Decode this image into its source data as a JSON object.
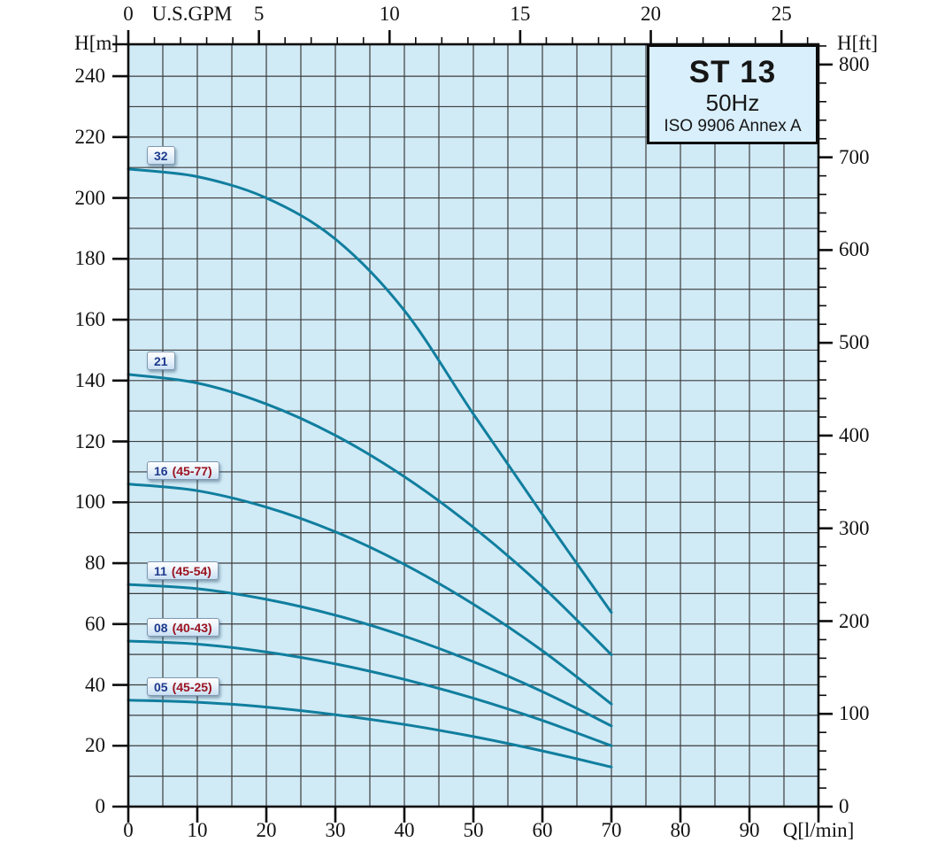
{
  "title_box": {
    "model": "ST 13",
    "frequency": "50Hz",
    "standard": "ISO 9906 Annex A"
  },
  "axes": {
    "left": {
      "label": "H[m]",
      "ticks": [
        0,
        20,
        40,
        60,
        80,
        100,
        120,
        140,
        160,
        180,
        200,
        220,
        240
      ],
      "range": [
        0,
        250.5
      ]
    },
    "right": {
      "label": "H[ft]",
      "ticks": [
        0,
        100,
        200,
        300,
        400,
        500,
        600,
        700,
        800
      ],
      "minor_step": 20,
      "range": [
        0,
        821.8
      ]
    },
    "bottom": {
      "label": "Q[l/min]",
      "ticks": [
        0,
        10,
        20,
        30,
        40,
        50,
        60,
        70,
        80,
        90
      ],
      "range": [
        0,
        100
      ]
    },
    "top": {
      "label": "U.S.GPM",
      "ticks": [
        0,
        5,
        10,
        15,
        20,
        25
      ],
      "minor_step": 1,
      "range": [
        0,
        26.42
      ]
    }
  },
  "chart_data": {
    "type": "line",
    "title": "ST 13 50Hz pump performance curves (ISO 9906 Annex A)",
    "xlabel": "Q[l/min]",
    "x2label": "U.S.GPM",
    "ylabel": "H[m]",
    "y2label": "H[ft]",
    "xlim": [
      0,
      100
    ],
    "ylim": [
      0,
      250.5
    ],
    "grid": {
      "x_step": 5,
      "y_step": 10,
      "on": true
    },
    "legend_position": "labels-on-curves",
    "series": [
      {
        "name": "32",
        "label_main": "32",
        "label_sub": "",
        "x": [
          0,
          10,
          20,
          30,
          40,
          50,
          60,
          70
        ],
        "values": [
          209.5,
          207.0,
          200.0,
          186.5,
          163.0,
          129.0,
          96.0,
          63.8
        ]
      },
      {
        "name": "21",
        "label_main": "21",
        "label_sub": "",
        "x": [
          0,
          10,
          20,
          30,
          40,
          50,
          60,
          70
        ],
        "values": [
          142.0,
          139.2,
          132.3,
          122.0,
          108.4,
          91.8,
          72.3,
          49.9
        ]
      },
      {
        "name": "16 (45-77)",
        "label_main": "16",
        "label_sub": "(45-77)",
        "x": [
          0,
          10,
          20,
          30,
          40,
          50,
          60,
          70
        ],
        "values": [
          106.0,
          103.8,
          98.4,
          90.3,
          79.6,
          66.5,
          51.2,
          33.7
        ]
      },
      {
        "name": "11 (45-54)",
        "label_main": "11",
        "label_sub": "(45-54)",
        "x": [
          0,
          10,
          20,
          30,
          40,
          50,
          60,
          70
        ],
        "values": [
          73.0,
          71.6,
          68.1,
          62.9,
          56.0,
          47.6,
          37.8,
          26.5
        ]
      },
      {
        "name": "08 (40-43)",
        "label_main": "08",
        "label_sub": "(40-43)",
        "x": [
          0,
          10,
          20,
          30,
          40,
          50,
          60,
          70
        ],
        "values": [
          54.4,
          53.4,
          50.8,
          46.9,
          41.8,
          35.6,
          28.3,
          20.0
        ]
      },
      {
        "name": "05 (45-25)",
        "label_main": "05",
        "label_sub": "(45-25)",
        "x": [
          0,
          10,
          20,
          30,
          40,
          50,
          60,
          70
        ],
        "values": [
          35.0,
          34.3,
          32.7,
          30.2,
          27.0,
          23.0,
          18.3,
          13.0
        ]
      }
    ]
  },
  "colors": {
    "plot_bg": "#d0eaf6",
    "title_box_bg": "#d9effb",
    "curve": "#107e9e",
    "grid": "#3d3d3d",
    "axis": "#0c0c0c",
    "chip_number": "#1e3a8c",
    "chip_range": "#9b1220"
  }
}
